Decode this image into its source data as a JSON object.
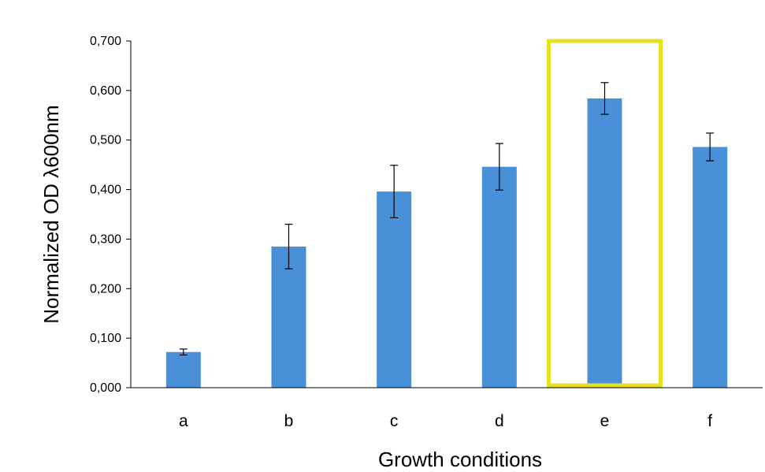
{
  "chart_data": {
    "type": "bar",
    "title": "",
    "xlabel": "Growth conditions",
    "ylabel": "Normalized OD λ600nm",
    "categories": [
      "a",
      "b",
      "c",
      "d",
      "e",
      "f"
    ],
    "values": [
      0.072,
      0.285,
      0.396,
      0.446,
      0.584,
      0.486
    ],
    "errors": [
      0.006,
      0.045,
      0.053,
      0.047,
      0.032,
      0.028
    ],
    "ylim": [
      0,
      0.7
    ],
    "yticks": [
      0,
      0.1,
      0.2,
      0.3,
      0.4,
      0.5,
      0.6,
      0.7
    ],
    "ytick_labels": [
      "0,000",
      "0,100",
      "0,200",
      "0,300",
      "0,400",
      "0,500",
      "0,600",
      "0,700"
    ],
    "grid": false,
    "legend": "none",
    "highlighted_category": "e",
    "colors": {
      "bar": "#4a90d9",
      "highlight_box": "#e5e022",
      "axis": "#000000",
      "error_bar": "#000000"
    }
  }
}
